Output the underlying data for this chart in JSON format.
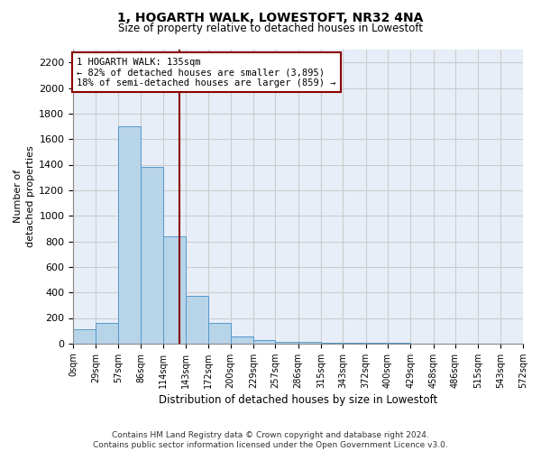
{
  "title": "1, HOGARTH WALK, LOWESTOFT, NR32 4NA",
  "subtitle": "Size of property relative to detached houses in Lowestoft",
  "xlabel": "Distribution of detached houses by size in Lowestoft",
  "ylabel": "Number of\ndetached properties",
  "bin_edges": [
    0,
    29,
    57,
    86,
    114,
    143,
    172,
    200,
    229,
    257,
    286,
    315,
    343,
    372,
    400,
    429,
    458,
    486,
    515,
    543,
    572
  ],
  "bin_labels": [
    "0sqm",
    "29sqm",
    "57sqm",
    "86sqm",
    "114sqm",
    "143sqm",
    "172sqm",
    "200sqm",
    "229sqm",
    "257sqm",
    "286sqm",
    "315sqm",
    "343sqm",
    "372sqm",
    "400sqm",
    "429sqm",
    "458sqm",
    "486sqm",
    "515sqm",
    "543sqm",
    "572sqm"
  ],
  "bar_heights": [
    110,
    160,
    1700,
    1380,
    840,
    370,
    160,
    55,
    25,
    15,
    10,
    8,
    5,
    4,
    3,
    2,
    2,
    1,
    1,
    1
  ],
  "bar_color": "#b8d4e8",
  "bar_edge_color": "#5599cc",
  "property_value": 135,
  "property_label": "1 HOGARTH WALK: 135sqm",
  "annotation_line1": "← 82% of detached houses are smaller (3,895)",
  "annotation_line2": "18% of semi-detached houses are larger (859) →",
  "annotation_box_color": "#8b0000",
  "annotation_fill": "#ffffff",
  "vline_color": "#8b0000",
  "ylim": [
    0,
    2300
  ],
  "yticks": [
    0,
    200,
    400,
    600,
    800,
    1000,
    1200,
    1400,
    1600,
    1800,
    2000,
    2200
  ],
  "grid_color": "#cccccc",
  "background_color": "#e8eef8",
  "footer_line1": "Contains HM Land Registry data © Crown copyright and database right 2024.",
  "footer_line2": "Contains public sector information licensed under the Open Government Licence v3.0."
}
